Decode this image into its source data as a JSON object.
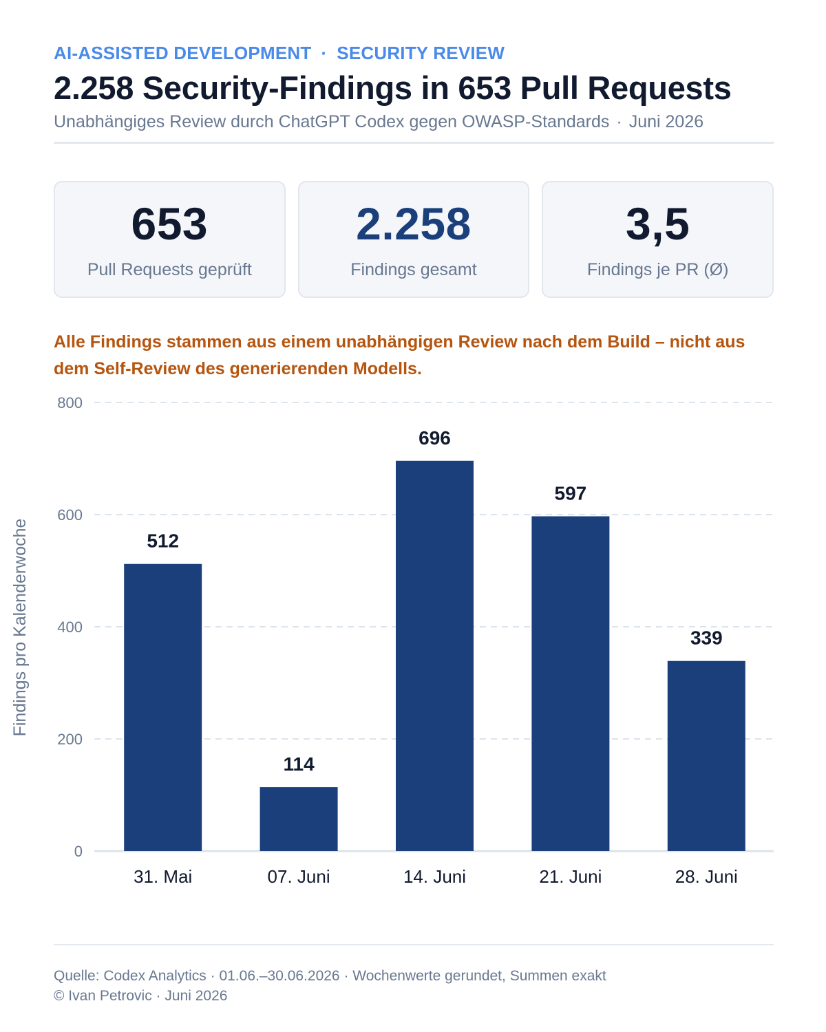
{
  "header": {
    "kicker_left": "AI-ASSISTED DEVELOPMENT",
    "kicker_sep": "·",
    "kicker_right": "SECURITY REVIEW",
    "title": "2.258 Security-Findings in 653 Pull Requests",
    "subtitle_left": "Unabhängiges Review durch ChatGPT Codex gegen OWASP-Standards",
    "subtitle_sep": "·",
    "subtitle_right": "Juni 2026"
  },
  "kpis": [
    {
      "value": "653",
      "label": "Pull Requests geprüft"
    },
    {
      "value": "2.258",
      "label": "Findings gesamt"
    },
    {
      "value": "3,5",
      "label": "Findings je PR (Ø)"
    }
  ],
  "note": "Alle Findings stammen aus einem unabhängigen Review nach dem Build – nicht aus dem Self-Review des generierenden Modells.",
  "chart_data": {
    "type": "bar",
    "categories": [
      "31. Mai",
      "07. Juni",
      "14. Juni",
      "21. Juni",
      "28. Juni"
    ],
    "values": [
      512,
      114,
      696,
      597,
      339
    ],
    "value_labels": [
      "512",
      "114",
      "696",
      "597",
      "339"
    ],
    "ylabel": "Findings pro Kalenderwoche",
    "ylim": [
      0,
      800
    ],
    "yticks": [
      0,
      200,
      400,
      600,
      800
    ],
    "grid": true,
    "bar_color": "#1a3f7a"
  },
  "footer": {
    "source": "Quelle: Codex Analytics · 01.06.–30.06.2026 · Wochenwerte gerundet, Summen exakt",
    "copyright": "© Ivan Petrovic · Juni 2026"
  }
}
